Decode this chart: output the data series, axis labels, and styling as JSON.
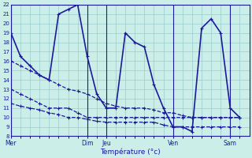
{
  "xlabel": "Température (°c)",
  "background_color": "#cceee8",
  "grid_color": "#99cccc",
  "line_color": "#1a1a9a",
  "ylim": [
    8,
    22
  ],
  "yticks": [
    8,
    9,
    10,
    11,
    12,
    13,
    14,
    15,
    16,
    17,
    18,
    19,
    20,
    21,
    22
  ],
  "xlim": [
    0,
    25
  ],
  "day_labels": [
    "Mer",
    "Dim",
    "Jeu",
    "Ven",
    "Sam"
  ],
  "day_positions": [
    0,
    8,
    10,
    17,
    23
  ],
  "num_points": 25,
  "series": [
    [
      19.0,
      16.5,
      15.5,
      14.5,
      14.0,
      21.0,
      21.5,
      22.0,
      16.5,
      12.5,
      11.0,
      11.0,
      19.0,
      18.0,
      17.5,
      13.5,
      11.0,
      9.0,
      9.0,
      8.5,
      19.5,
      20.5,
      19.0,
      11.0,
      10.0
    ],
    [
      13.0,
      12.5,
      12.0,
      11.5,
      11.0,
      11.0,
      11.0,
      10.5,
      10.0,
      10.0,
      10.0,
      10.0,
      10.0,
      10.0,
      10.0,
      10.0,
      10.0,
      10.0,
      10.0,
      10.0,
      10.0,
      10.0,
      10.0,
      10.0,
      10.0
    ],
    [
      16.0,
      15.5,
      15.0,
      14.5,
      14.0,
      13.5,
      13.0,
      12.8,
      12.5,
      12.0,
      11.5,
      11.2,
      11.0,
      11.0,
      11.0,
      10.8,
      10.5,
      10.5,
      10.2,
      10.0,
      10.0,
      10.0,
      10.0,
      10.0,
      10.0
    ],
    [
      11.5,
      11.2,
      11.0,
      10.8,
      10.5,
      10.3,
      10.0,
      10.0,
      9.8,
      9.6,
      9.5,
      9.5,
      9.5,
      9.5,
      9.5,
      9.5,
      9.2,
      9.0,
      9.0,
      9.0,
      9.0,
      9.0,
      9.0,
      9.0,
      9.0
    ]
  ],
  "linestyles": [
    "-",
    "--",
    "--",
    "--"
  ],
  "linewidths": [
    1.2,
    0.9,
    0.9,
    0.9
  ]
}
